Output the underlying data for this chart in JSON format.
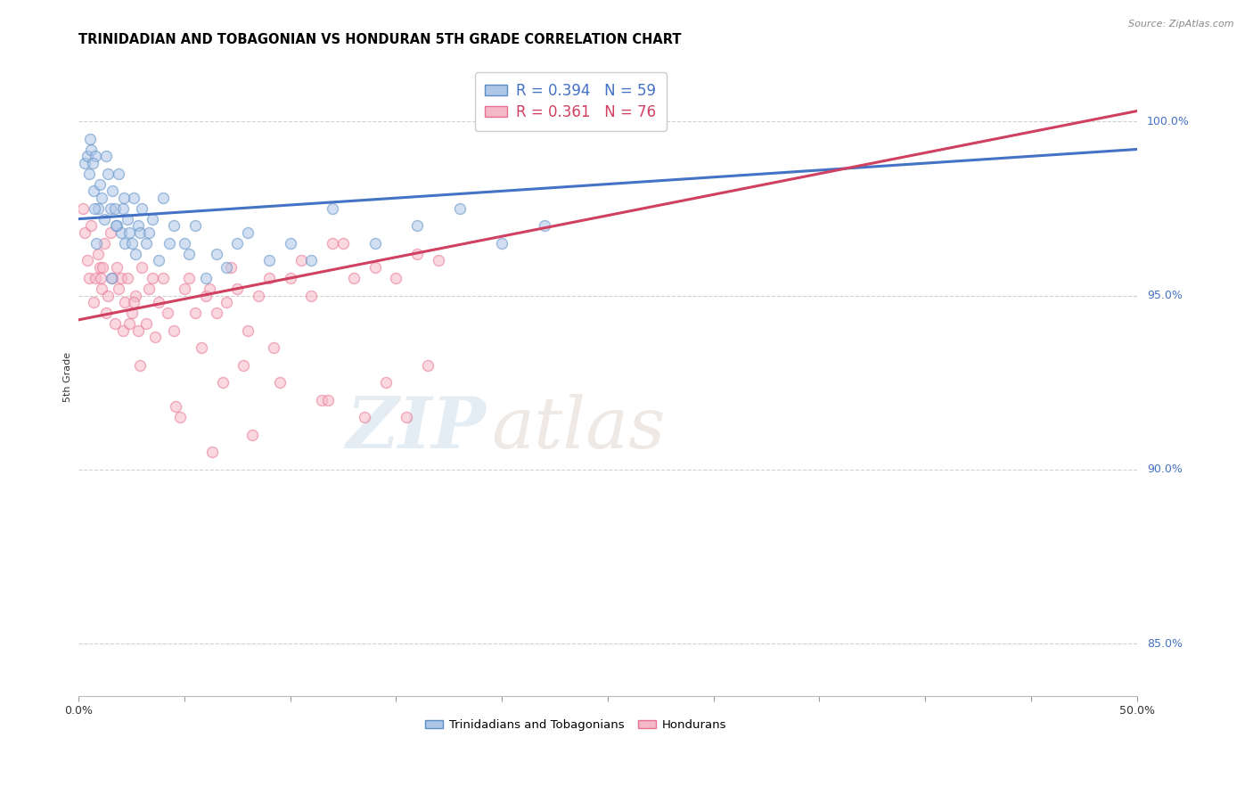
{
  "title": "TRINIDADIAN AND TOBAGONIAN VS HONDURAN 5TH GRADE CORRELATION CHART",
  "source": "Source: ZipAtlas.com",
  "ylabel": "5th Grade",
  "yticks": [
    85.0,
    90.0,
    95.0,
    100.0
  ],
  "ytick_labels": [
    "85.0%",
    "90.0%",
    "95.0%",
    "100.0%"
  ],
  "xlim": [
    0.0,
    50.0
  ],
  "ylim": [
    83.5,
    101.8
  ],
  "legend_entries": [
    {
      "label": "Trinidadians and Tobagonians",
      "R": 0.394,
      "N": 59
    },
    {
      "label": "Hondurans",
      "R": 0.361,
      "N": 76
    }
  ],
  "trin_color": "#aec6e8",
  "hond_color": "#f5b8c8",
  "trin_edge_color": "#5b8ec4",
  "hond_edge_color": "#e87090",
  "trin_line_color": "#4472c4",
  "hond_line_color": "#d04060",
  "marker_size": 75,
  "marker_lw": 1.0,
  "marker_alpha": 0.55,
  "trin_line": {
    "x0": 0.0,
    "x1": 50.0,
    "y0": 97.2,
    "y1": 99.2
  },
  "hond_line": {
    "x0": 0.0,
    "x1": 50.0,
    "y0": 94.3,
    "y1": 100.3
  },
  "trin_scatter_x": [
    0.3,
    0.4,
    0.5,
    0.6,
    0.7,
    0.8,
    0.9,
    1.0,
    1.1,
    1.2,
    1.3,
    1.4,
    1.5,
    1.6,
    1.7,
    1.8,
    1.9,
    2.0,
    2.1,
    2.2,
    2.3,
    2.4,
    2.5,
    2.6,
    2.7,
    2.8,
    2.9,
    3.0,
    3.2,
    3.5,
    3.8,
    4.0,
    4.3,
    4.5,
    5.0,
    5.5,
    6.0,
    6.5,
    7.0,
    7.5,
    8.0,
    9.0,
    10.0,
    11.0,
    12.0,
    14.0,
    16.0,
    18.0,
    20.0,
    22.0,
    5.2,
    3.3,
    2.15,
    1.75,
    1.55,
    0.55,
    0.65,
    0.75,
    0.85
  ],
  "trin_scatter_y": [
    98.8,
    99.0,
    98.5,
    99.2,
    98.0,
    99.0,
    97.5,
    98.2,
    97.8,
    97.2,
    99.0,
    98.5,
    97.5,
    98.0,
    97.5,
    97.0,
    98.5,
    96.8,
    97.5,
    96.5,
    97.2,
    96.8,
    96.5,
    97.8,
    96.2,
    97.0,
    96.8,
    97.5,
    96.5,
    97.2,
    96.0,
    97.8,
    96.5,
    97.0,
    96.5,
    97.0,
    95.5,
    96.2,
    95.8,
    96.5,
    96.8,
    96.0,
    96.5,
    96.0,
    97.5,
    96.5,
    97.0,
    97.5,
    96.5,
    97.0,
    96.2,
    96.8,
    97.8,
    97.0,
    95.5,
    99.5,
    98.8,
    97.5,
    96.5
  ],
  "hond_scatter_x": [
    0.2,
    0.3,
    0.4,
    0.5,
    0.6,
    0.7,
    0.8,
    0.9,
    1.0,
    1.1,
    1.2,
    1.3,
    1.4,
    1.5,
    1.6,
    1.7,
    1.8,
    1.9,
    2.0,
    2.1,
    2.2,
    2.3,
    2.5,
    2.7,
    3.0,
    3.2,
    3.5,
    3.8,
    4.0,
    4.5,
    5.0,
    5.5,
    6.0,
    6.5,
    7.0,
    7.5,
    8.0,
    9.0,
    10.0,
    11.0,
    12.0,
    13.0,
    14.0,
    15.0,
    16.0,
    17.0,
    1.05,
    1.15,
    2.4,
    2.6,
    2.8,
    3.3,
    4.2,
    5.2,
    6.2,
    7.2,
    8.5,
    10.5,
    12.5,
    5.8,
    7.8,
    9.5,
    11.5,
    13.5,
    4.8,
    3.6,
    2.9,
    4.6,
    6.8,
    9.2,
    11.8,
    14.5,
    16.5,
    6.3,
    8.2,
    15.5
  ],
  "hond_scatter_y": [
    97.5,
    96.8,
    96.0,
    95.5,
    97.0,
    94.8,
    95.5,
    96.2,
    95.8,
    95.2,
    96.5,
    94.5,
    95.0,
    96.8,
    95.5,
    94.2,
    95.8,
    95.2,
    95.5,
    94.0,
    94.8,
    95.5,
    94.5,
    95.0,
    95.8,
    94.2,
    95.5,
    94.8,
    95.5,
    94.0,
    95.2,
    94.5,
    95.0,
    94.5,
    94.8,
    95.2,
    94.0,
    95.5,
    95.5,
    95.0,
    96.5,
    95.5,
    95.8,
    95.5,
    96.2,
    96.0,
    95.5,
    95.8,
    94.2,
    94.8,
    94.0,
    95.2,
    94.5,
    95.5,
    95.2,
    95.8,
    95.0,
    96.0,
    96.5,
    93.5,
    93.0,
    92.5,
    92.0,
    91.5,
    91.5,
    93.8,
    93.0,
    91.8,
    92.5,
    93.5,
    92.0,
    92.5,
    93.0,
    90.5,
    91.0,
    91.5
  ],
  "background_color": "#ffffff",
  "grid_color": "#d0d0d0",
  "title_fontsize": 10.5,
  "axis_label_fontsize": 8,
  "tick_fontsize": 9
}
